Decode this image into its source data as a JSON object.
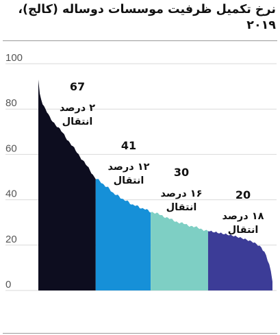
{
  "chart_data": {
    "type": "area",
    "title": "نرخ تکمیل ظرفیت موسسات دوساله (کالج)، ۲۰۱۹",
    "ylim": [
      0,
      100
    ],
    "yticks": [
      "100",
      "80",
      "60",
      "40",
      "20",
      "0"
    ],
    "grid": true,
    "segments": [
      {
        "value": "67",
        "label_line1": "۲ درصد",
        "label_line2": "انتقال",
        "color": "#0d0d1f"
      },
      {
        "value": "41",
        "label_line1": "۱۲ درصد",
        "label_line2": "انتقال",
        "color": "#1690d8"
      },
      {
        "value": "30",
        "label_line1": "۱۶ درصد",
        "label_line2": "انتقال",
        "color": "#7ecfc4"
      },
      {
        "value": "20",
        "label_line1": "۱۸ درصد",
        "label_line2": "انتقال",
        "color": "#3c3c97"
      }
    ],
    "curve_x": [
      0,
      0.005,
      0.02,
      0.05,
      0.1,
      0.15,
      0.2,
      0.24,
      0.3,
      0.32,
      0.35,
      0.4,
      0.45,
      0.5,
      0.52,
      0.55,
      0.6,
      0.65,
      0.7,
      0.73,
      0.78,
      0.83,
      0.88,
      0.92,
      0.95,
      0.97,
      0.99,
      1.0
    ],
    "curve_y": [
      93,
      87,
      82,
      76,
      70,
      63,
      56,
      50,
      45,
      43,
      41,
      38,
      36,
      34,
      33.5,
      32,
      30,
      28.5,
      27,
      26,
      25,
      24,
      22.5,
      21,
      19,
      16,
      10,
      4
    ]
  }
}
